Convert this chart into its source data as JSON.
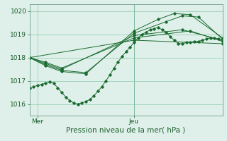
{
  "xlabel": "Pression niveau de la mer( hPa )",
  "bg_color": "#dff0ea",
  "grid_color": "#88c8a8",
  "line_color": "#1a6b30",
  "marker_color": "#1a6b30",
  "ylim": [
    1015.5,
    1020.3
  ],
  "xlim": [
    0,
    48
  ],
  "xtick_vals": [
    2,
    26
  ],
  "xtick_labels": [
    "Mer",
    "Jeu"
  ],
  "ytick_vals": [
    1016,
    1017,
    1018,
    1019,
    1020
  ],
  "ytick_labels": [
    "1016",
    "1017",
    "1018",
    "1019",
    "1020"
  ],
  "vline_x": 26,
  "series": [
    {
      "x": [
        0,
        1,
        2,
        3,
        4,
        5,
        6,
        7,
        8,
        9,
        10,
        11,
        12,
        13,
        14,
        15,
        16,
        17,
        18,
        19,
        20,
        21,
        22,
        23,
        24,
        25,
        26,
        27,
        28,
        29,
        30,
        31,
        32,
        33,
        34,
        35,
        36,
        37,
        38,
        39,
        40,
        41,
        42,
        43,
        44,
        45,
        46,
        47,
        48
      ],
      "y": [
        1016.7,
        1016.75,
        1016.8,
        1016.85,
        1016.9,
        1016.95,
        1016.9,
        1016.7,
        1016.5,
        1016.3,
        1016.15,
        1016.05,
        1016.0,
        1016.05,
        1016.1,
        1016.2,
        1016.35,
        1016.55,
        1016.75,
        1017.0,
        1017.25,
        1017.55,
        1017.8,
        1018.05,
        1018.25,
        1018.45,
        1018.65,
        1018.85,
        1019.0,
        1019.1,
        1019.2,
        1019.25,
        1019.3,
        1019.2,
        1019.1,
        1018.9,
        1018.75,
        1018.6,
        1018.6,
        1018.65,
        1018.65,
        1018.7,
        1018.7,
        1018.75,
        1018.8,
        1018.85,
        1018.85,
        1018.8,
        1018.75
      ]
    },
    {
      "x": [
        0,
        26,
        48
      ],
      "y": [
        1018.0,
        1018.75,
        1018.6
      ]
    },
    {
      "x": [
        0,
        4,
        8,
        26,
        40,
        48
      ],
      "y": [
        1018.0,
        1017.8,
        1017.55,
        1018.85,
        1019.15,
        1018.7
      ]
    },
    {
      "x": [
        0,
        4,
        8,
        26,
        38,
        48
      ],
      "y": [
        1018.0,
        1017.75,
        1017.5,
        1018.95,
        1019.2,
        1018.75
      ]
    },
    {
      "x": [
        0,
        4,
        8,
        14,
        26,
        34,
        38,
        42,
        48
      ],
      "y": [
        1018.0,
        1017.7,
        1017.45,
        1017.35,
        1019.05,
        1019.55,
        1019.8,
        1019.75,
        1018.8
      ]
    },
    {
      "x": [
        0,
        4,
        8,
        14,
        26,
        32,
        36,
        40,
        48
      ],
      "y": [
        1018.0,
        1017.65,
        1017.4,
        1017.3,
        1019.15,
        1019.65,
        1019.9,
        1019.85,
        1018.85
      ]
    }
  ]
}
